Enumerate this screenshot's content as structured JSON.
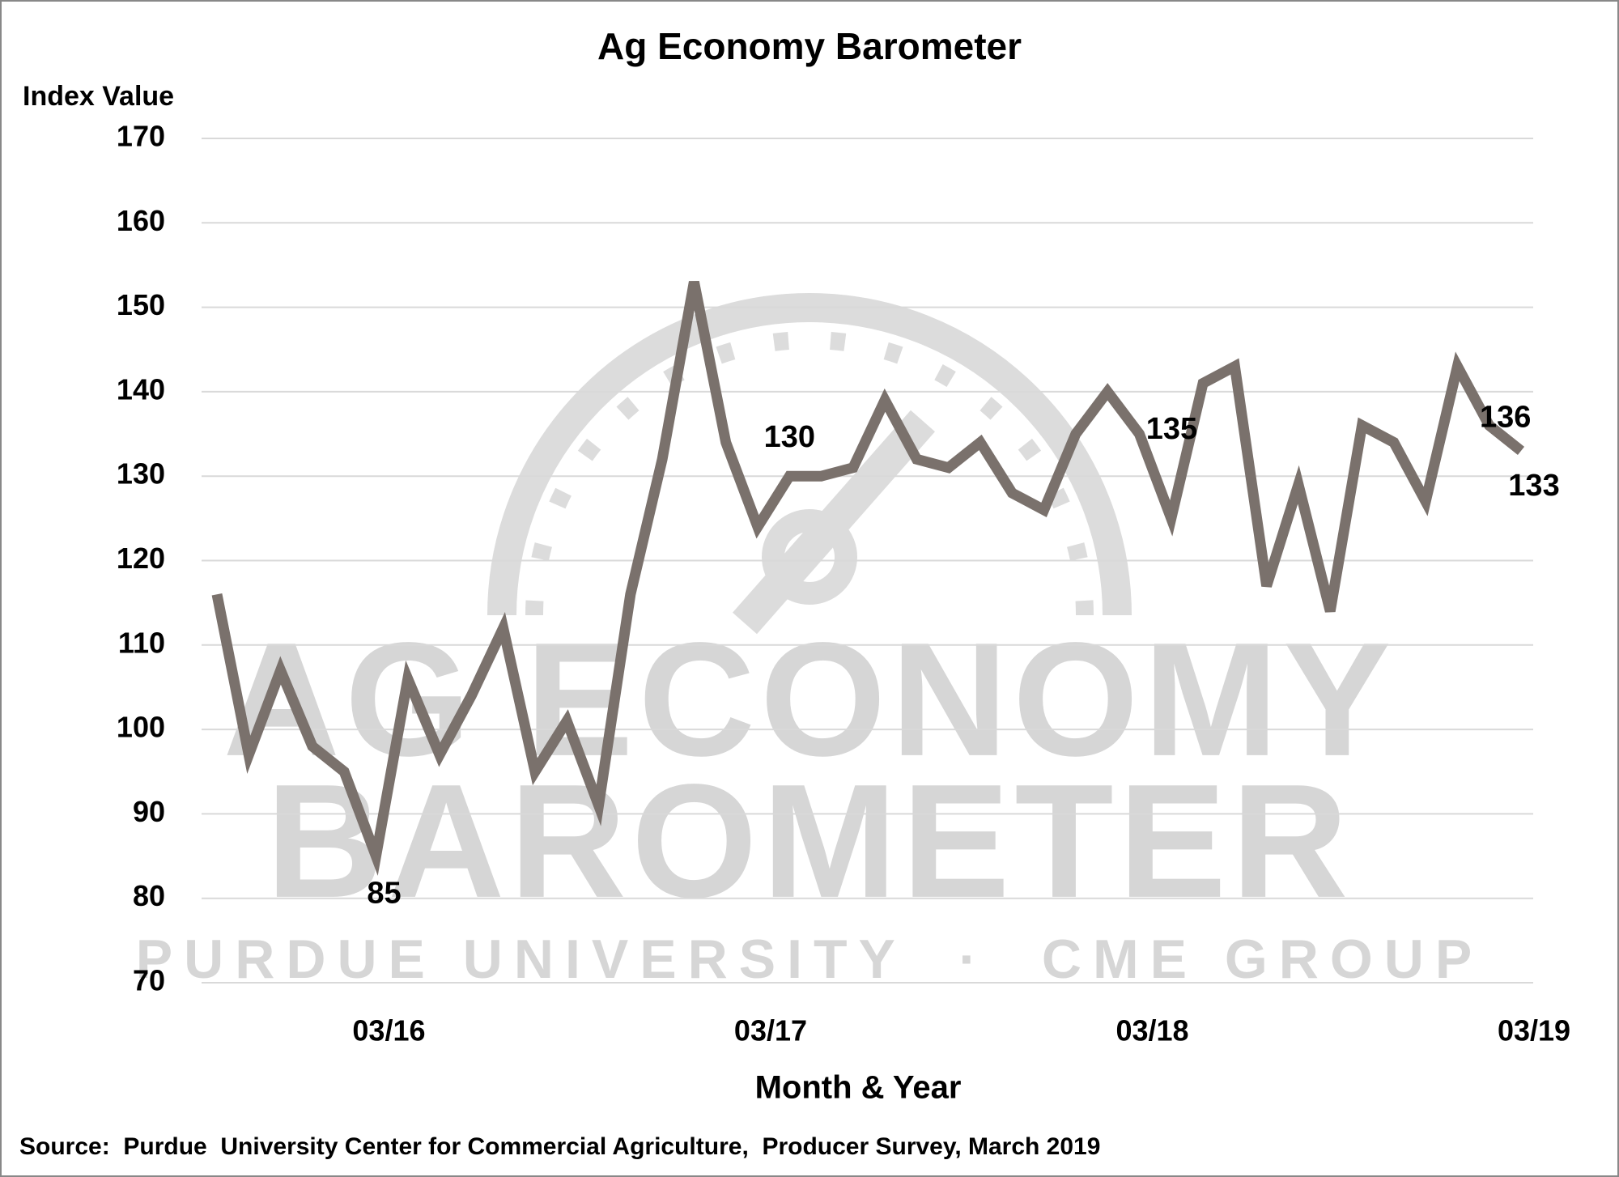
{
  "chart_data": {
    "type": "line",
    "title": "Ag Economy Barometer",
    "y_label": "Index Value",
    "x_label": "Month & Year",
    "source": "Source:  Purdue  University Center for Commercial Agriculture,  Producer Survey, March 2019",
    "watermark": [
      "AG ECONOMY",
      "BAROMETER",
      "PURDUE UNIVERSITY  ·  CME GROUP"
    ],
    "categories": [
      null,
      null,
      null,
      null,
      null,
      "03/16",
      null,
      null,
      null,
      null,
      null,
      null,
      null,
      null,
      null,
      null,
      null,
      "03/17",
      null,
      null,
      null,
      null,
      null,
      null,
      null,
      null,
      null,
      null,
      null,
      "03/18",
      null,
      null,
      null,
      null,
      null,
      null,
      null,
      null,
      null,
      null,
      null,
      "03/19"
    ],
    "series": [
      {
        "name": "Index Value",
        "color": "#7a716c",
        "values": [
          116,
          97,
          107,
          98,
          95,
          85,
          106,
          97,
          104,
          112,
          95,
          101,
          91,
          116,
          132,
          153,
          134,
          124,
          130,
          130,
          131,
          139,
          132,
          131,
          134,
          128,
          126,
          135,
          140,
          135,
          125,
          141,
          143,
          117,
          129,
          114,
          136,
          134,
          127,
          143,
          136,
          133
        ],
        "value_labels": [
          null,
          null,
          null,
          null,
          null,
          "85",
          null,
          null,
          null,
          null,
          null,
          null,
          null,
          null,
          null,
          null,
          null,
          null,
          "130",
          null,
          null,
          null,
          null,
          null,
          null,
          null,
          null,
          null,
          null,
          "135",
          null,
          null,
          null,
          null,
          null,
          null,
          null,
          null,
          null,
          null,
          "136",
          "133"
        ]
      }
    ],
    "ylim": [
      70,
      170
    ],
    "yticks": [
      70,
      80,
      90,
      100,
      110,
      120,
      130,
      140,
      150,
      160,
      170
    ],
    "grid": true
  }
}
